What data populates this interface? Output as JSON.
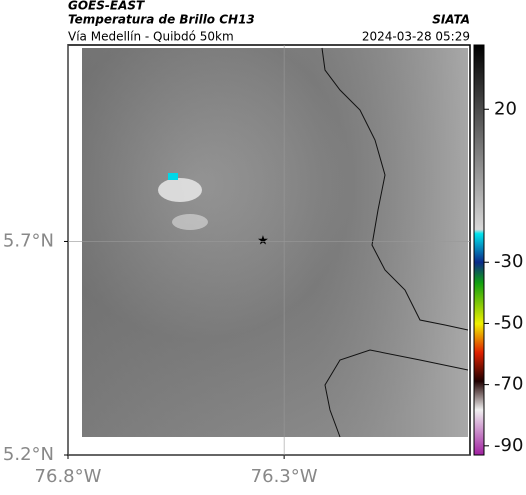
{
  "header": {
    "title": "GOES-EAST",
    "subtitle": "Temperatura de Brillo CH13",
    "source": "SIATA",
    "location": "Vía Medellín - Quibdó 50km",
    "datetime": "2024-03-28 05:29"
  },
  "map": {
    "xlim": [
      -76.8,
      -75.87
    ],
    "ylim": [
      5.2,
      6.16
    ],
    "xticks": [
      {
        "value": -76.8,
        "label": "76.8°W"
      },
      {
        "value": -76.3,
        "label": "76.3°W"
      }
    ],
    "yticks": [
      {
        "value": 5.2,
        "label": "5.2°N"
      },
      {
        "value": 5.7,
        "label": "5.7°N"
      }
    ]
  },
  "colorbar": {
    "ylim": [
      -93,
      41
    ],
    "yticks": [
      20,
      -30,
      -50,
      -70,
      -90
    ]
  }
}
